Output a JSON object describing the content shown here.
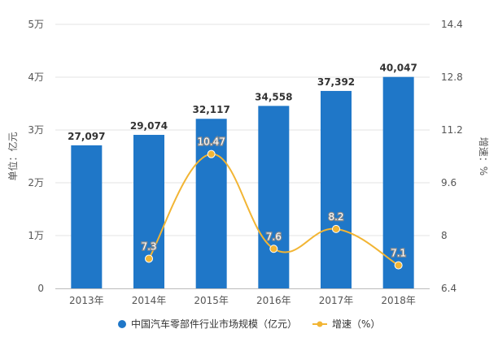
{
  "chart_data": {
    "type": "bar",
    "categories": [
      "2013年",
      "2014年",
      "2015年",
      "2016年",
      "2017年",
      "2018年"
    ],
    "series": [
      {
        "name": "中国汽车零部件行业市场规模（亿元）",
        "kind": "bar",
        "axis": "left",
        "color": "#1f77c8",
        "values": [
          27097,
          29074,
          32117,
          34558,
          37392,
          40047
        ],
        "labels": [
          "27,097",
          "29,074",
          "32,117",
          "34,558",
          "37,392",
          "40,047"
        ]
      },
      {
        "name": "增速（%）",
        "kind": "line",
        "axis": "right",
        "color": "#f2b534",
        "values": [
          null,
          7.3,
          10.47,
          7.6,
          8.2,
          7.1
        ],
        "labels": [
          "",
          "7.3",
          "10.47",
          "7.6",
          "8.2",
          "7.1"
        ]
      }
    ],
    "ylabel": "单位：亿元",
    "y2label": "增速：%",
    "ylim": [
      0,
      50000
    ],
    "y2lim": [
      6.4,
      14.4
    ],
    "yticks": [
      0,
      10000,
      20000,
      30000,
      40000,
      50000
    ],
    "ytick_labels": [
      "0",
      "1万",
      "2万",
      "3万",
      "4万",
      "5万"
    ],
    "y2ticks": [
      6.4,
      8,
      9.6,
      11.2,
      12.8,
      14.4
    ],
    "y2tick_labels": [
      "6.4",
      "8",
      "9.6",
      "11.2",
      "12.8",
      "14.4"
    ],
    "grid": true,
    "legend": "bottom"
  }
}
